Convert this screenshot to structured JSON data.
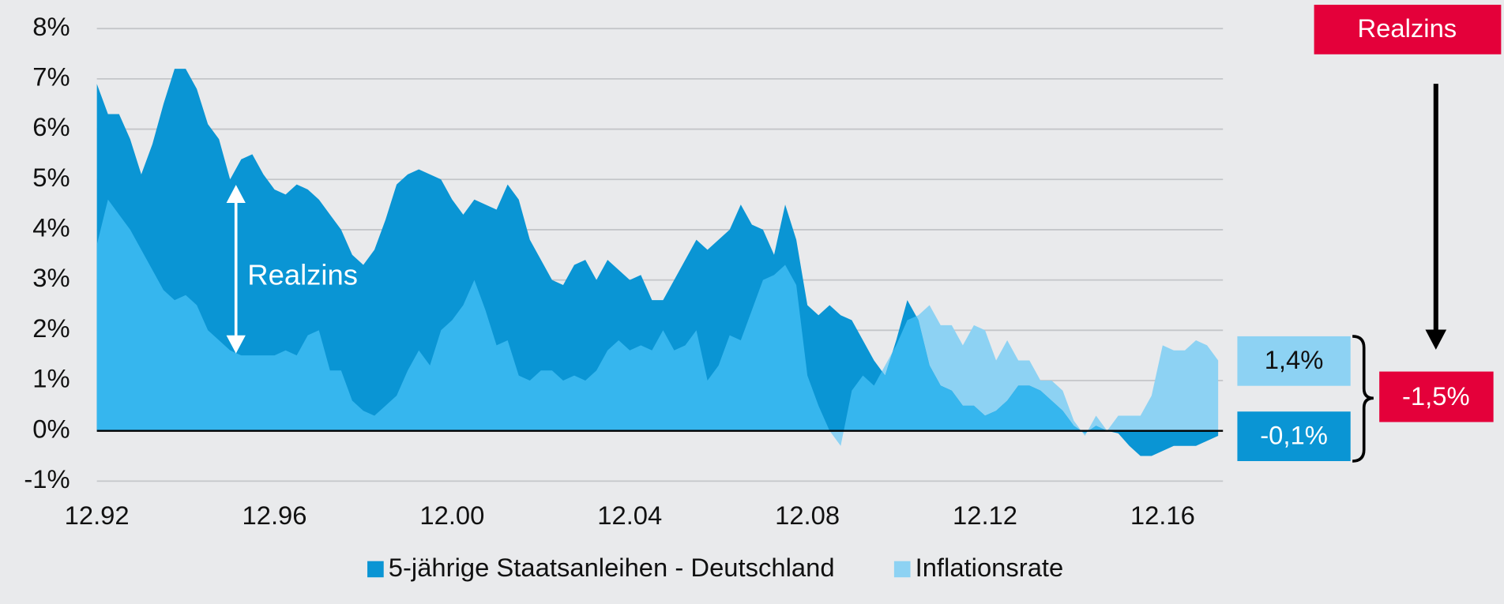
{
  "chart_data": {
    "type": "area",
    "x": [
      "12.92",
      "03.93",
      "06.93",
      "09.93",
      "12.93",
      "03.94",
      "06.94",
      "09.94",
      "12.94",
      "03.95",
      "06.95",
      "09.95",
      "12.95",
      "03.96",
      "06.96",
      "09.96",
      "12.96",
      "03.97",
      "06.97",
      "09.97",
      "12.97",
      "03.98",
      "06.98",
      "09.98",
      "12.98",
      "03.99",
      "06.99",
      "09.99",
      "12.99",
      "03.00",
      "06.00",
      "09.00",
      "12.00",
      "03.01",
      "06.01",
      "09.01",
      "12.01",
      "03.02",
      "06.02",
      "09.02",
      "12.02",
      "03.03",
      "06.03",
      "09.03",
      "12.03",
      "03.04",
      "06.04",
      "09.04",
      "12.04",
      "03.05",
      "06.05",
      "09.05",
      "12.05",
      "03.06",
      "06.06",
      "09.06",
      "12.06",
      "03.07",
      "06.07",
      "09.07",
      "12.07",
      "03.08",
      "06.08",
      "09.08",
      "12.08",
      "03.09",
      "06.09",
      "09.09",
      "12.09",
      "03.10",
      "06.10",
      "09.10",
      "12.10",
      "03.11",
      "06.11",
      "09.11",
      "12.11",
      "03.12",
      "06.12",
      "09.12",
      "12.12",
      "03.13",
      "06.13",
      "09.13",
      "12.13",
      "03.14",
      "06.14",
      "09.14",
      "12.14",
      "03.15",
      "06.15",
      "09.15",
      "12.15",
      "03.16",
      "06.16",
      "09.16",
      "12.16",
      "03.17",
      "06.17",
      "09.17",
      "12.17",
      "03.18"
    ],
    "series": [
      {
        "name": "5-jährige Staatsanleihen - Deutschland",
        "color": "#0a95d4",
        "values": [
          6.9,
          6.3,
          6.3,
          5.8,
          5.1,
          5.7,
          6.5,
          7.2,
          7.2,
          6.8,
          6.1,
          5.8,
          5.0,
          5.4,
          5.5,
          5.1,
          4.8,
          4.7,
          4.9,
          4.8,
          4.6,
          4.3,
          4.0,
          3.5,
          3.3,
          3.6,
          4.2,
          4.9,
          5.1,
          5.2,
          5.1,
          5.0,
          4.6,
          4.3,
          4.6,
          4.5,
          4.4,
          4.9,
          4.6,
          3.8,
          3.4,
          3.0,
          2.9,
          3.3,
          3.4,
          3.0,
          3.4,
          3.2,
          3.0,
          3.1,
          2.6,
          2.6,
          3.0,
          3.4,
          3.8,
          3.6,
          3.8,
          4.0,
          4.5,
          4.1,
          4.0,
          3.5,
          4.5,
          3.8,
          2.5,
          2.3,
          2.5,
          2.3,
          2.2,
          1.8,
          1.4,
          1.1,
          1.8,
          2.6,
          2.2,
          1.3,
          0.9,
          0.8,
          0.5,
          0.5,
          0.3,
          0.4,
          0.6,
          0.9,
          0.9,
          0.8,
          0.6,
          0.4,
          0.1,
          -0.05,
          0.1,
          0.0,
          -0.05,
          -0.3,
          -0.5,
          -0.5,
          -0.4,
          -0.3,
          -0.3,
          -0.3,
          -0.2,
          -0.1
        ]
      },
      {
        "name": "Inflationsrate",
        "color": "#8dd2f3",
        "values": [
          3.7,
          4.6,
          4.3,
          4.0,
          3.6,
          3.2,
          2.8,
          2.6,
          2.7,
          2.5,
          2.0,
          1.8,
          1.6,
          1.5,
          1.5,
          1.5,
          1.5,
          1.6,
          1.5,
          1.9,
          2.0,
          1.2,
          1.2,
          0.6,
          0.4,
          0.3,
          0.5,
          0.7,
          1.2,
          1.6,
          1.3,
          2.0,
          2.2,
          2.5,
          3.0,
          2.4,
          1.7,
          1.8,
          1.1,
          1.0,
          1.2,
          1.2,
          1.0,
          1.1,
          1.0,
          1.2,
          1.6,
          1.8,
          1.6,
          1.7,
          1.6,
          2.0,
          1.6,
          1.7,
          2.0,
          1.0,
          1.3,
          1.9,
          1.8,
          2.4,
          3.0,
          3.1,
          3.3,
          2.9,
          1.1,
          0.5,
          0.0,
          -0.3,
          0.8,
          1.1,
          0.9,
          1.3,
          1.7,
          2.2,
          2.3,
          2.5,
          2.1,
          2.1,
          1.7,
          2.1,
          2.0,
          1.4,
          1.8,
          1.4,
          1.4,
          1.0,
          1.0,
          0.8,
          0.2,
          -0.1,
          0.3,
          0.0,
          0.3,
          0.3,
          0.3,
          0.7,
          1.7,
          1.6,
          1.6,
          1.8,
          1.7,
          1.4
        ]
      }
    ],
    "overlap_color": "#36b6ee",
    "ylim": [
      -1,
      8
    ],
    "yticks": [
      {
        "value": -1,
        "label": "-1%"
      },
      {
        "value": 0,
        "label": "0%"
      },
      {
        "value": 1,
        "label": "1%"
      },
      {
        "value": 2,
        "label": "2%"
      },
      {
        "value": 3,
        "label": "3%"
      },
      {
        "value": 4,
        "label": "4%"
      },
      {
        "value": 5,
        "label": "5%"
      },
      {
        "value": 6,
        "label": "6%"
      },
      {
        "value": 7,
        "label": "7%"
      },
      {
        "value": 8,
        "label": "8%"
      }
    ],
    "xticks": [
      "12.92",
      "12.96",
      "12.00",
      "12.04",
      "12.08",
      "12.12",
      "12.16"
    ],
    "grid": true,
    "legend": "bottom",
    "annotations": [
      "Realzins",
      "1,4%",
      "-0,1%",
      "-1,5%"
    ]
  }
}
